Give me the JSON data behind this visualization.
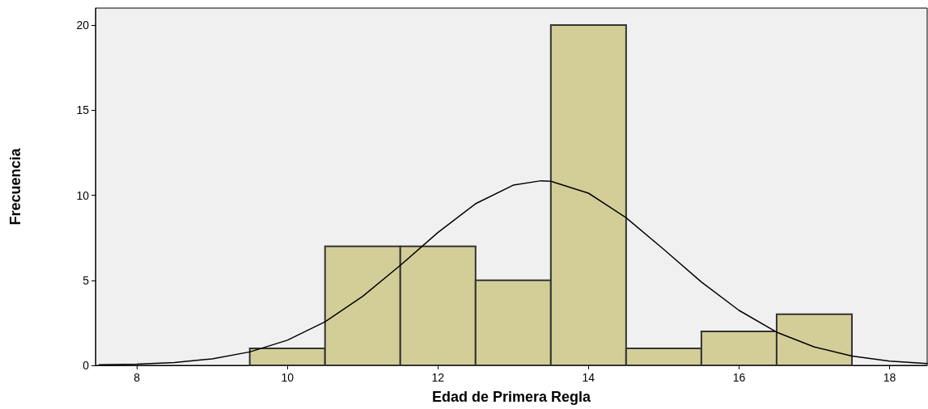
{
  "chart_data": {
    "type": "histogram",
    "xlabel": "Edad de Primera Regla",
    "ylabel": "Frecuencia",
    "bins": [
      9.5,
      10.5,
      11.5,
      12.5,
      13.5,
      14.5,
      15.5,
      16.5,
      17.5
    ],
    "values": [
      1,
      7,
      7,
      5,
      20,
      1,
      2,
      3
    ],
    "color": "#d3ce97",
    "series": [
      {
        "type": "line",
        "color": "#000000",
        "marker": "none",
        "line_style": "solid",
        "x": [
          7.5,
          8,
          8.5,
          9,
          9.5,
          10,
          10.5,
          11,
          11.5,
          12,
          12.5,
          13,
          13.37,
          13.5,
          14,
          14.5,
          15,
          15.5,
          16,
          16.5,
          17,
          17.5,
          18,
          18.5
        ],
        "values": [
          0.03,
          0.07,
          0.17,
          0.38,
          0.79,
          1.48,
          2.56,
          4.06,
          5.88,
          7.81,
          9.5,
          10.59,
          10.85,
          10.82,
          10.12,
          8.68,
          6.82,
          4.9,
          3.23,
          1.95,
          1.08,
          0.55,
          0.25,
          0.11
        ]
      }
    ],
    "xlim": [
      7.45,
      18.5
    ],
    "xticks": [
      8,
      10,
      12,
      14,
      16,
      18
    ],
    "ylim": [
      0,
      21
    ],
    "yticks": [
      0,
      5,
      10,
      15,
      20
    ],
    "grid": false
  }
}
